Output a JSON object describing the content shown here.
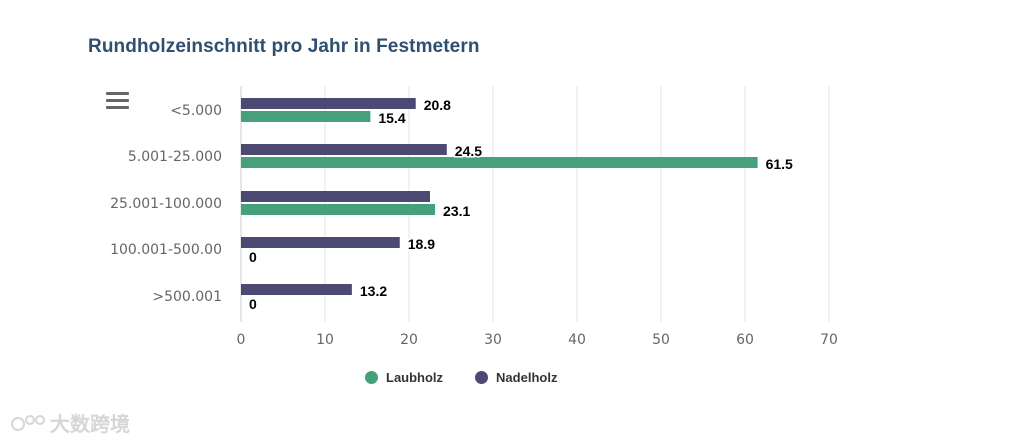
{
  "chart_data": {
    "type": "bar",
    "orientation": "horizontal",
    "title": "Rundholzeinschnitt pro Jahr in Festmetern",
    "categories": [
      "<5.000",
      "5.001-25.000",
      "25.001-100.000",
      "100.001-500.00",
      ">500.001"
    ],
    "series": [
      {
        "name": "Nadelholz",
        "color": "#4c4a73",
        "values": [
          20.8,
          24.5,
          22.5,
          18.9,
          13.2
        ],
        "labels": [
          "20.8",
          "24.5",
          "",
          "18.9",
          "13.2"
        ]
      },
      {
        "name": "Laubholz",
        "color": "#46a07b",
        "values": [
          15.4,
          61.5,
          23.1,
          0,
          0
        ],
        "labels": [
          "15.4",
          "61.5",
          "23.1",
          "0",
          "0"
        ]
      }
    ],
    "xlim": [
      0,
      70
    ],
    "xticks": [
      "0",
      "10",
      "20",
      "30",
      "40",
      "50",
      "60",
      "70"
    ],
    "grid": true,
    "legend_position": "bottom-center",
    "legend": [
      {
        "name": "Laubholz",
        "color": "#46a07b"
      },
      {
        "name": "Nadelholz",
        "color": "#4c4a73"
      }
    ]
  },
  "watermark": {
    "text": "大数跨境"
  }
}
